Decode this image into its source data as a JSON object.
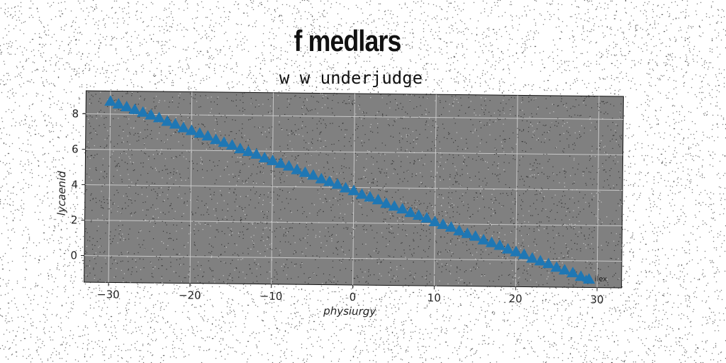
{
  "title": "f medlars",
  "subtitle": "w w underjudge",
  "chart_data": {
    "type": "scatter",
    "marker": "triangle-up",
    "color": "#1f77b4",
    "background": "#808080",
    "grid": true,
    "xlabel": "physiurgy",
    "ylabel": "lycaenid",
    "xlim": [
      -33,
      33
    ],
    "ylim": [
      -1.5,
      9.3
    ],
    "xticks": [
      -30,
      -20,
      -10,
      0,
      10,
      20,
      30
    ],
    "yticks": [
      0,
      2,
      4,
      6,
      8
    ],
    "xtick_labels": [
      "−30",
      "−20",
      "−10",
      "0",
      "10",
      "20",
      "30"
    ],
    "ytick_labels": [
      "0",
      "2",
      "4",
      "6",
      "8"
    ],
    "legend": {
      "label": "ilex",
      "placement": "lower-right"
    },
    "series": [
      {
        "name": "ilex",
        "x": [
          -30,
          -29,
          -28,
          -27,
          -26,
          -25,
          -24,
          -23,
          -22,
          -21,
          -20,
          -19,
          -18,
          -17,
          -16,
          -15,
          -14,
          -13,
          -12,
          -11,
          -10,
          -9,
          -8,
          -7,
          -6,
          -5,
          -4,
          -3,
          -2,
          -1,
          0,
          1,
          2,
          3,
          4,
          5,
          6,
          7,
          8,
          9,
          10,
          11,
          12,
          13,
          14,
          15,
          16,
          17,
          18,
          19,
          20,
          21,
          22,
          23,
          24,
          25,
          26,
          27,
          28,
          29
        ],
        "y": [
          8.7,
          8.55,
          8.4,
          8.25,
          8.1,
          7.95,
          7.8,
          7.6,
          7.45,
          7.25,
          7.1,
          6.95,
          6.8,
          6.6,
          6.45,
          6.3,
          6.1,
          5.95,
          5.8,
          5.6,
          5.45,
          5.3,
          5.15,
          4.95,
          4.8,
          4.65,
          4.45,
          4.3,
          4.15,
          3.95,
          3.8,
          3.6,
          3.45,
          3.3,
          3.1,
          2.95,
          2.8,
          2.6,
          2.45,
          2.3,
          2.1,
          1.95,
          1.8,
          1.6,
          1.45,
          1.3,
          1.1,
          0.95,
          0.8,
          0.6,
          0.45,
          0.3,
          0.1,
          -0.05,
          -0.2,
          -0.4,
          -0.55,
          -0.7,
          -0.9,
          -1.05
        ]
      }
    ]
  }
}
